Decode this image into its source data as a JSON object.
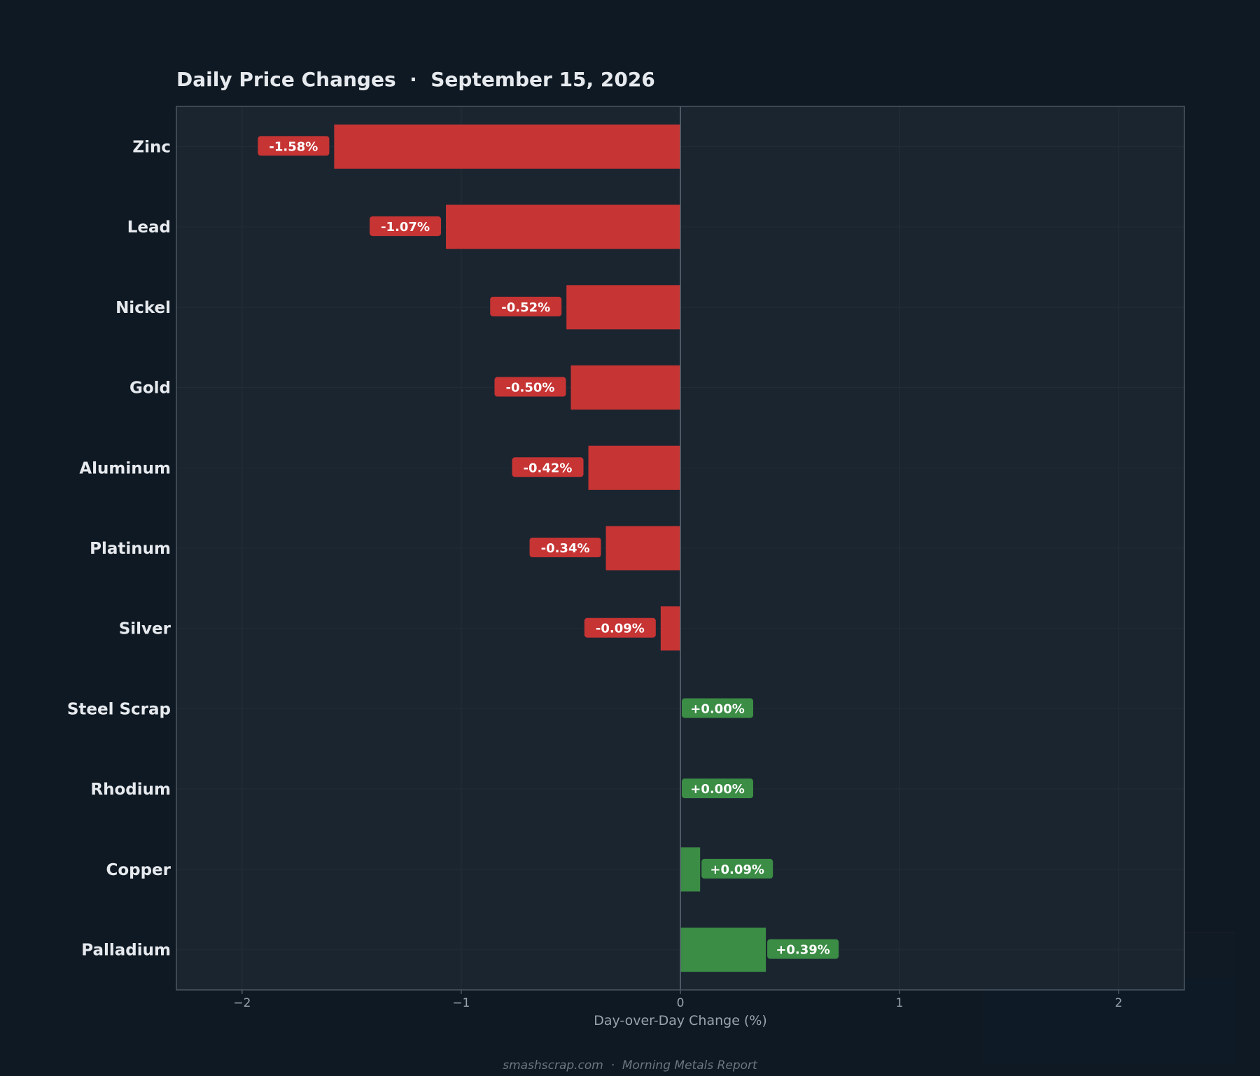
{
  "chart_data": {
    "type": "bar",
    "orientation": "horizontal",
    "title": "Daily Price Changes  ·  September 15, 2026",
    "xlabel": "Day-over-Day Change (%)",
    "ylabel": "",
    "xlim": [
      -2.3,
      2.3
    ],
    "xticks": [
      -2,
      -1,
      0,
      1,
      2
    ],
    "xtick_labels": [
      "−2",
      "−1",
      "0",
      "1",
      "2"
    ],
    "grid": true,
    "categories": [
      "Zinc",
      "Lead",
      "Nickel",
      "Gold",
      "Aluminum",
      "Platinum",
      "Silver",
      "Steel Scrap",
      "Rhodium",
      "Copper",
      "Palladium"
    ],
    "values": [
      -1.58,
      -1.07,
      -0.52,
      -0.5,
      -0.42,
      -0.34,
      -0.09,
      0.0,
      0.0,
      0.09,
      0.39
    ],
    "data_labels": [
      "-1.58%",
      "-1.07%",
      "-0.52%",
      "-0.50%",
      "-0.42%",
      "-0.34%",
      "-0.09%",
      "+0.00%",
      "+0.00%",
      "+0.09%",
      "+0.39%"
    ],
    "colors": {
      "negative": "#c63434",
      "positive": "#3b8c45",
      "page_background": "#0f1923",
      "plot_background": "#1b2530"
    }
  },
  "footer": "smashscrap.com  ·  Morning Metals Report"
}
